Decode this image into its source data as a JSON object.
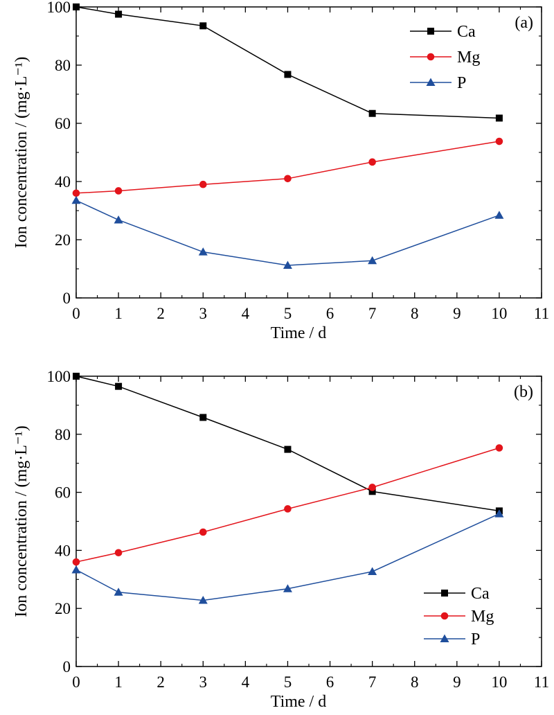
{
  "colors": {
    "Ca": "#000000",
    "Mg": "#e3141b",
    "P": "#1f4e9c"
  },
  "chart_data": [
    {
      "type": "line",
      "panel_label": "(a)",
      "xlabel": "Time / d",
      "ylabel": "Ion concentration / (mg·L⁻¹)",
      "xlim": [
        0,
        11
      ],
      "ylim": [
        0,
        100
      ],
      "xticks": [
        0,
        1,
        2,
        3,
        4,
        5,
        6,
        7,
        8,
        9,
        10,
        11
      ],
      "yticks": [
        0,
        20,
        40,
        60,
        80,
        100
      ],
      "grid": false,
      "legend_position": "top-right",
      "series": [
        {
          "name": "Ca",
          "marker": "square",
          "color": "#000000",
          "x": [
            0,
            1,
            3,
            5,
            7,
            10
          ],
          "y": [
            100,
            97.5,
            93.5,
            76.8,
            63.4,
            61.8
          ]
        },
        {
          "name": "Mg",
          "marker": "circle",
          "color": "#e3141b",
          "x": [
            0,
            1,
            3,
            5,
            7,
            10
          ],
          "y": [
            36.0,
            36.8,
            39.0,
            41.0,
            46.7,
            53.8
          ]
        },
        {
          "name": "P",
          "marker": "triangle",
          "color": "#1f4e9c",
          "x": [
            0,
            1,
            3,
            5,
            7,
            10
          ],
          "y": [
            33.5,
            26.8,
            15.8,
            11.2,
            12.8,
            28.4
          ]
        }
      ]
    },
    {
      "type": "line",
      "panel_label": "(b)",
      "xlabel": "Time / d",
      "ylabel": "Ion concentration / (mg·L⁻¹)",
      "xlim": [
        0,
        11
      ],
      "ylim": [
        0,
        100
      ],
      "xticks": [
        0,
        1,
        2,
        3,
        4,
        5,
        6,
        7,
        8,
        9,
        10,
        11
      ],
      "yticks": [
        0,
        20,
        40,
        60,
        80,
        100
      ],
      "grid": false,
      "legend_position": "bottom-right",
      "series": [
        {
          "name": "Ca",
          "marker": "square",
          "color": "#000000",
          "x": [
            0,
            1,
            3,
            5,
            7,
            10
          ],
          "y": [
            100,
            96.5,
            85.8,
            74.8,
            60.3,
            53.6
          ]
        },
        {
          "name": "Mg",
          "marker": "circle",
          "color": "#e3141b",
          "x": [
            0,
            1,
            3,
            5,
            7,
            10
          ],
          "y": [
            36.0,
            39.2,
            46.3,
            54.3,
            61.7,
            75.3
          ]
        },
        {
          "name": "P",
          "marker": "triangle",
          "color": "#1f4e9c",
          "x": [
            0,
            1,
            3,
            5,
            7,
            10
          ],
          "y": [
            33.3,
            25.6,
            22.8,
            26.8,
            32.7,
            52.6
          ]
        }
      ]
    }
  ]
}
